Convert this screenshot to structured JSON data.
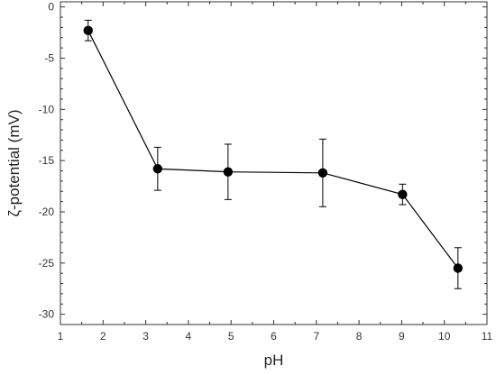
{
  "chart_data": {
    "type": "line",
    "xlabel": "pH",
    "ylabel": "ζ-potential (mV)",
    "xlim": [
      1,
      11
    ],
    "ylim": [
      -31,
      0.5
    ],
    "x_ticks": [
      1,
      2,
      3,
      4,
      5,
      6,
      7,
      8,
      9,
      10,
      11
    ],
    "y_ticks": [
      0,
      -5,
      -10,
      -15,
      -20,
      -25,
      -30
    ],
    "grid": false,
    "series": [
      {
        "x": [
          1.65,
          3.28,
          4.93,
          7.15,
          9.02,
          10.32
        ],
        "y": [
          -2.3,
          -15.8,
          -16.1,
          -16.2,
          -18.3,
          -25.5
        ],
        "error": [
          1.0,
          2.1,
          2.7,
          3.3,
          1.0,
          2.0
        ],
        "color": "#000000",
        "marker": "circle"
      }
    ]
  }
}
